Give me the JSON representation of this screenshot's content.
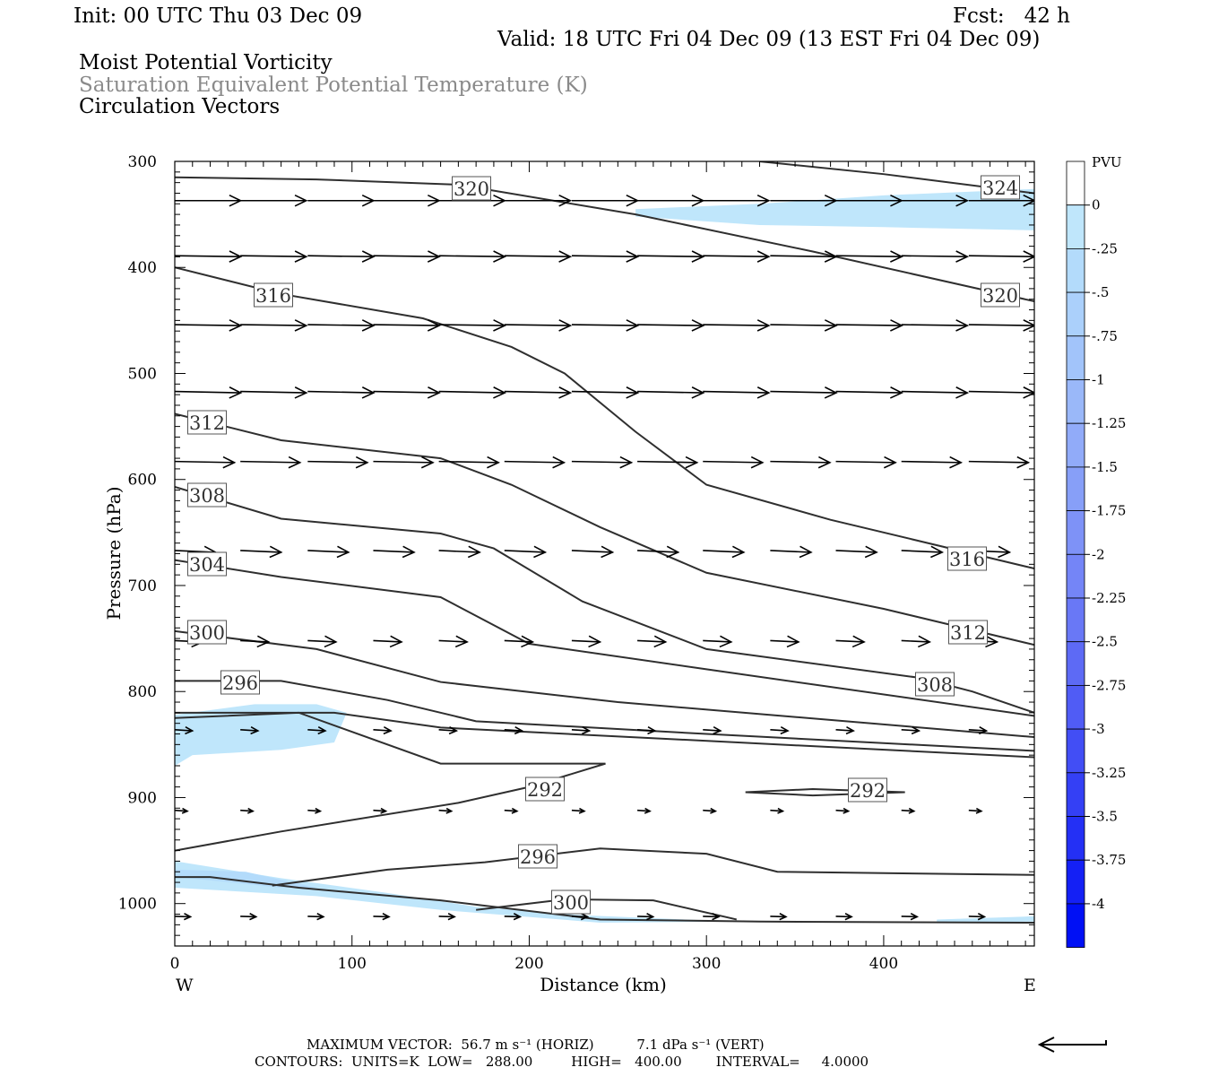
{
  "header": {
    "init": "Init: 00 UTC Thu 03 Dec 09",
    "fcst": "Fcst:   42 h",
    "valid": "Valid: 18 UTC Fri 04 Dec 09 (13 EST Fri 04 Dec 09)",
    "field1": "Moist Potential Vorticity",
    "field2": "Saturation Equivalent Potential Temperature (K)",
    "field3": "Circulation Vectors"
  },
  "footer": {
    "max_vector": "MAXIMUM VECTOR:  56.7 m s⁻¹ (HORIZ)          7.1 dPa s⁻¹ (VERT)",
    "contours": "CONTOURS:  UNITS=K  LOW=   288.00         HIGH=   400.00        INTERVAL=     4.0000"
  },
  "colors": {
    "contour": "#2f2f2f",
    "pv_light": "#bfe6fb",
    "pv_mid": "#a9b4f4",
    "pv_strong": "#0000f5"
  },
  "chart_data": {
    "type": "contour",
    "xlabel": "Distance (km)",
    "ylabel": "Pressure (hPa)",
    "xlim": [
      0,
      485
    ],
    "ylim": [
      300,
      1040
    ],
    "y_scale": "linear, inverted",
    "x_ticks": [
      "0",
      "100",
      "200",
      "300",
      "400"
    ],
    "y_ticks": [
      "300",
      "400",
      "500",
      "600",
      "700",
      "800",
      "900",
      "1000"
    ],
    "x_end_labels": {
      "left": "W",
      "right": "E"
    },
    "legend": {
      "title": "PVU",
      "labels": [
        "0",
        "-.25",
        "-.5",
        "-.75",
        "-1",
        "-1.25",
        "-1.5",
        "-1.75",
        "-2",
        "-2.25",
        "-2.5",
        "-2.75",
        "-3",
        "-3.25",
        "-3.5",
        "-3.75",
        "-4"
      ],
      "colors": [
        "#ffffff",
        "#bfe6fb",
        "#b3dbfb",
        "#abd0fb",
        "#a2c4fa",
        "#9ab8f9",
        "#91abf9",
        "#879ff8",
        "#7e92f7",
        "#7485f7",
        "#6978f6",
        "#5d6af5",
        "#505cf5",
        "#424ef5",
        "#3440f5",
        "#2430f5",
        "#1420f5",
        "#0010f5"
      ]
    },
    "contours": [
      {
        "label": "320",
        "points": [
          [
            0,
            315
          ],
          [
            80,
            317
          ],
          [
            160,
            322
          ],
          [
            260,
            350
          ],
          [
            360,
            385
          ],
          [
            485,
            432
          ]
        ]
      },
      {
        "label": "324",
        "points": [
          [
            330,
            300
          ],
          [
            400,
            312
          ],
          [
            485,
            330
          ]
        ]
      },
      {
        "label": "316",
        "points": [
          [
            0,
            400
          ],
          [
            60,
            425
          ],
          [
            140,
            448
          ],
          [
            190,
            475
          ],
          [
            220,
            500
          ],
          [
            260,
            555
          ],
          [
            300,
            605
          ],
          [
            370,
            638
          ],
          [
            485,
            684
          ]
        ]
      },
      {
        "label": "312",
        "points": [
          [
            0,
            538
          ],
          [
            60,
            563
          ],
          [
            150,
            580
          ],
          [
            190,
            605
          ],
          [
            240,
            645
          ],
          [
            300,
            688
          ],
          [
            400,
            722
          ],
          [
            485,
            756
          ]
        ]
      },
      {
        "label": "308",
        "points": [
          [
            0,
            607
          ],
          [
            60,
            637
          ],
          [
            150,
            651
          ],
          [
            180,
            665
          ],
          [
            230,
            715
          ],
          [
            300,
            760
          ],
          [
            420,
            787
          ],
          [
            450,
            800
          ],
          [
            485,
            820
          ]
        ]
      },
      {
        "label": "304",
        "points": [
          [
            0,
            676
          ],
          [
            60,
            692
          ],
          [
            150,
            711
          ],
          [
            200,
            755
          ],
          [
            300,
            779
          ],
          [
            485,
            823
          ]
        ]
      },
      {
        "label": "300",
        "points": [
          [
            0,
            743
          ],
          [
            80,
            760
          ],
          [
            150,
            791
          ],
          [
            250,
            810
          ],
          [
            485,
            843
          ]
        ]
      },
      {
        "label": "296",
        "points": [
          [
            0,
            790
          ],
          [
            60,
            790
          ],
          [
            120,
            808
          ],
          [
            170,
            828
          ],
          [
            300,
            840
          ],
          [
            485,
            856
          ]
        ]
      },
      {
        "label": "300",
        "points": [
          [
            0,
            820
          ],
          [
            90,
            820
          ],
          [
            150,
            834
          ],
          [
            485,
            862
          ]
        ]
      },
      {
        "label": "292",
        "points": [
          [
            0,
            950
          ],
          [
            60,
            932
          ],
          [
            160,
            905
          ],
          [
            200,
            890
          ],
          [
            243,
            868
          ],
          [
            150,
            868
          ],
          [
            70,
            820
          ],
          [
            0,
            825
          ]
        ]
      },
      {
        "label": "292",
        "points": [
          [
            322,
            895
          ],
          [
            360,
            892
          ],
          [
            412,
            895
          ],
          [
            360,
            898
          ],
          [
            322,
            895
          ]
        ]
      },
      {
        "label": "296",
        "points": [
          [
            55,
            983
          ],
          [
            120,
            968
          ],
          [
            175,
            961
          ],
          [
            240,
            948
          ],
          [
            300,
            953
          ],
          [
            340,
            970
          ],
          [
            485,
            973
          ]
        ]
      },
      {
        "label": "300",
        "points": [
          [
            170,
            1006
          ],
          [
            220,
            996
          ],
          [
            270,
            997
          ],
          [
            317,
            1015
          ]
        ]
      },
      {
        "label": "",
        "points": [
          [
            0,
            975
          ],
          [
            20,
            975
          ],
          [
            70,
            985
          ],
          [
            150,
            997
          ],
          [
            240,
            1015
          ],
          [
            330,
            1017
          ],
          [
            485,
            1018
          ]
        ]
      }
    ],
    "pv_shading": [
      {
        "level": "-.25",
        "points": [
          [
            260,
            345
          ],
          [
            330,
            340
          ],
          [
            400,
            332
          ],
          [
            485,
            326
          ],
          [
            485,
            365
          ],
          [
            400,
            362
          ],
          [
            330,
            360
          ],
          [
            260,
            352
          ]
        ]
      },
      {
        "level": "-.25",
        "points": [
          [
            0,
            822
          ],
          [
            45,
            812
          ],
          [
            80,
            812
          ],
          [
            97,
            820
          ],
          [
            90,
            848
          ],
          [
            60,
            855
          ],
          [
            10,
            860
          ],
          [
            0,
            870
          ]
        ]
      },
      {
        "level": "-.25",
        "points": [
          [
            0,
            960
          ],
          [
            60,
            976
          ],
          [
            120,
            990
          ],
          [
            170,
            1003
          ],
          [
            230,
            1011
          ],
          [
            317,
            1017
          ],
          [
            240,
            1018
          ],
          [
            150,
            1006
          ],
          [
            80,
            993
          ],
          [
            0,
            985
          ]
        ]
      },
      {
        "level": "-.5",
        "points": [
          [
            0,
            968
          ],
          [
            40,
            970
          ],
          [
            80,
            985
          ],
          [
            60,
            985
          ],
          [
            20,
            978
          ],
          [
            0,
            975
          ]
        ]
      },
      {
        "level": "-.25",
        "points": [
          [
            430,
            1015
          ],
          [
            485,
            1012
          ],
          [
            485,
            1017
          ],
          [
            430,
            1018
          ]
        ]
      }
    ],
    "wind_vectors": [
      {
        "p": 337,
        "xs": [
          0,
          37,
          75,
          112,
          149,
          186,
          224,
          261,
          298,
          336,
          373,
          410,
          448
        ],
        "u": 10.5,
        "w": 0
      },
      {
        "p": 389,
        "xs": [
          0,
          37,
          75,
          112,
          149,
          186,
          224,
          261,
          298,
          336,
          373,
          410,
          448
        ],
        "u": 10.5,
        "w": 0.4
      },
      {
        "p": 454,
        "xs": [
          0,
          37,
          75,
          112,
          149,
          186,
          224,
          261,
          298,
          336,
          373,
          410,
          448
        ],
        "u": 10.5,
        "w": 0.4
      },
      {
        "p": 517,
        "xs": [
          0,
          37,
          75,
          112,
          149,
          186,
          224,
          261,
          298,
          336,
          373,
          410,
          448
        ],
        "u": 10.5,
        "w": 0.6
      },
      {
        "p": 583,
        "xs": [
          0,
          37,
          75,
          112,
          149,
          186,
          224,
          261,
          298,
          336,
          373,
          410,
          448
        ],
        "u": 9.5,
        "w": 0.5
      },
      {
        "p": 667,
        "xs": [
          0,
          37,
          75,
          112,
          149,
          186,
          224,
          261,
          298,
          336,
          373,
          410,
          448
        ],
        "u": 6.5,
        "w": 0.8
      },
      {
        "p": 752,
        "xs": [
          0,
          37,
          75,
          112,
          149,
          186,
          224,
          261,
          298,
          336,
          373,
          410,
          448
        ],
        "u": 4.5,
        "w": 0.6
      },
      {
        "p": 836,
        "xs": [
          0,
          37,
          75,
          112,
          149,
          186,
          224,
          261,
          298,
          336,
          373,
          410,
          448
        ],
        "u": 2.8,
        "w": 0.5
      },
      {
        "p": 912,
        "xs": [
          0,
          37,
          75,
          112,
          149,
          186,
          224,
          261,
          298,
          336,
          373,
          410,
          448
        ],
        "u": 2.0,
        "w": 0.4
      },
      {
        "p": 1012,
        "xs": [
          0,
          37,
          75,
          112,
          149,
          186,
          224,
          261,
          298,
          336,
          373,
          410,
          448
        ],
        "u": 2.5,
        "w": 0.2
      }
    ]
  }
}
